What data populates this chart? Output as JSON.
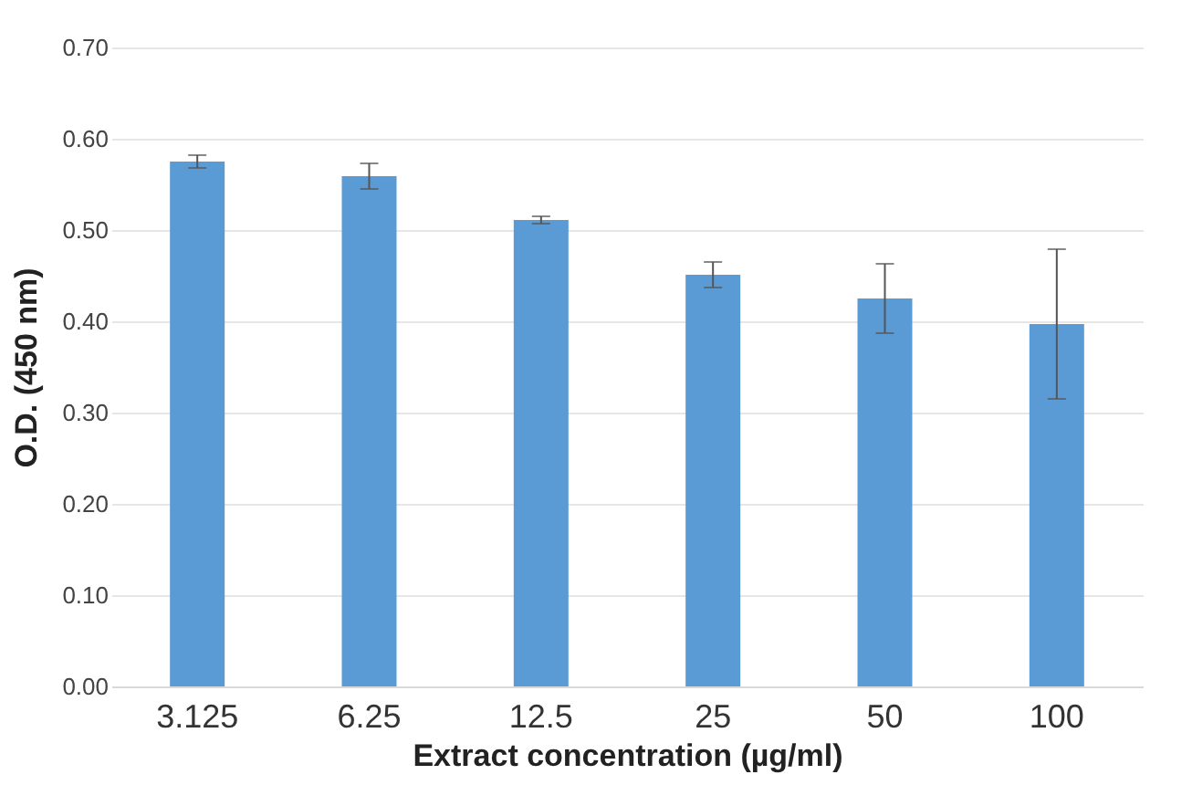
{
  "chart_data": {
    "type": "bar",
    "xlabel": "Extract concentration (µg/ml)",
    "ylabel": "O.D. (450 nm)",
    "categories": [
      "3.125",
      "6.25",
      "12.5",
      "25",
      "50",
      "100"
    ],
    "values": [
      0.575,
      0.559,
      0.511,
      0.451,
      0.425,
      0.397
    ],
    "errors": [
      0.007,
      0.014,
      0.004,
      0.014,
      0.038,
      0.082
    ],
    "color": "#5b9bd5",
    "ylim": [
      0,
      0.7
    ],
    "yticks": [
      {
        "value": 0,
        "label": "0.00"
      },
      {
        "value": 0.1,
        "label": "0.10"
      },
      {
        "value": 0.2,
        "label": "0.20"
      },
      {
        "value": 0.3,
        "label": "0.30"
      },
      {
        "value": 0.4,
        "label": "0.40"
      },
      {
        "value": 0.5,
        "label": "0.50"
      },
      {
        "value": 0.6,
        "label": "0.60"
      },
      {
        "value": 0.7,
        "label": "0.70"
      }
    ],
    "grid": "y"
  }
}
